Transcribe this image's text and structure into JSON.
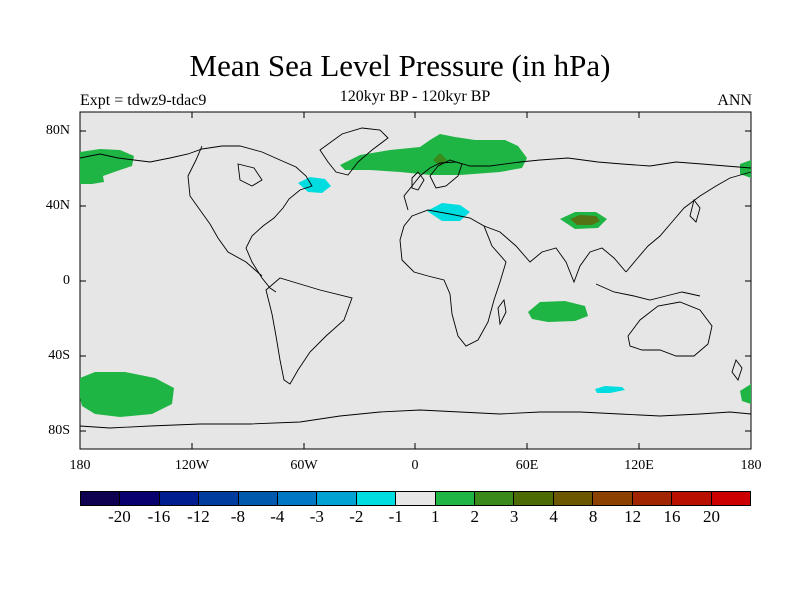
{
  "title": "Mean Sea Level Pressure (in hPa)",
  "experiment": "Expt = tdwz9-tdac9",
  "subtitle": "120kyr BP - 120kyr BP",
  "season": "ANN",
  "map": {
    "background_color": "#e6e6e6",
    "lat_ticks": [
      "80N",
      "40N",
      "0",
      "40S",
      "80S"
    ],
    "lon_ticks": [
      "180",
      "120W",
      "60W",
      "0",
      "60E",
      "120E",
      "180"
    ]
  },
  "anomalies": [
    {
      "region": "north pacific arctic",
      "category": "1 to 2",
      "color": "#1fb544"
    },
    {
      "region": "greenland arctic",
      "category": "1 to 2",
      "color": "#1fb544"
    },
    {
      "region": "labrador sea",
      "category": "-2 to -1",
      "color": "#00dde0"
    },
    {
      "region": "mediterranean",
      "category": "-2 to -1",
      "color": "#00dde0"
    },
    {
      "region": "tibet",
      "category": "2 to 3 / 3 to 4",
      "color": "#3a8a1b"
    },
    {
      "region": "south indian ocean",
      "category": "1 to 2",
      "color": "#1fb544"
    },
    {
      "region": "southern ocean pacific",
      "category": "1 to 2",
      "color": "#1fb544"
    },
    {
      "region": "southern ocean indian",
      "category": "-2 to -1",
      "color": "#00dde0"
    }
  ],
  "colorbar": {
    "colors": [
      "#100050",
      "#07006e",
      "#001d8f",
      "#003c9d",
      "#0059ad",
      "#0077c2",
      "#00a2d4",
      "#00dde0",
      "#e6e6e6",
      "#1fb544",
      "#3a8a1b",
      "#4c6b05",
      "#6b5700",
      "#8b4100",
      "#a02500",
      "#b80f00",
      "#cd0000"
    ],
    "labels": [
      "-20",
      "-16",
      "-12",
      "-8",
      "-4",
      "-3",
      "-2",
      "-1",
      "1",
      "2",
      "3",
      "4",
      "8",
      "12",
      "16",
      "20"
    ]
  }
}
